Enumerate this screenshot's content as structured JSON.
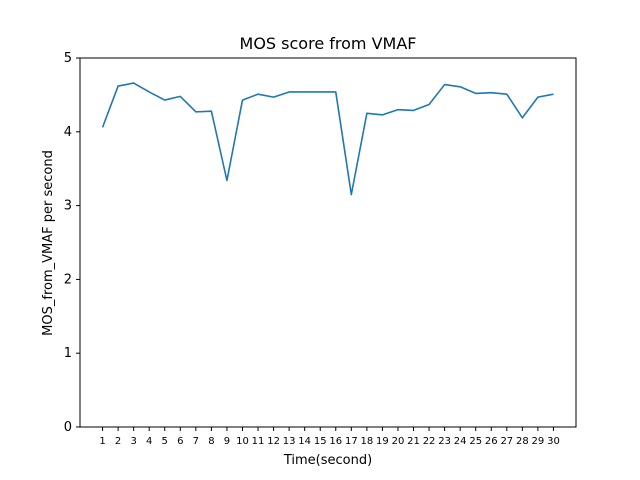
{
  "chart_data": {
    "type": "line",
    "title": "MOS score from VMAF",
    "xlabel": "Time(second)",
    "ylabel": "MOS_from_VMAF per second",
    "ylim": [
      0,
      5
    ],
    "yticks": [
      0,
      1,
      2,
      3,
      4,
      5
    ],
    "grid": false,
    "color": "#1f77b4",
    "x": [
      1,
      2,
      3,
      4,
      5,
      6,
      7,
      8,
      9,
      10,
      11,
      12,
      13,
      14,
      15,
      16,
      17,
      18,
      19,
      20,
      21,
      22,
      23,
      24,
      25,
      26,
      27,
      28,
      29,
      30
    ],
    "x_tick_labels": [
      "1",
      "2",
      "3",
      "4",
      "5",
      "6",
      "7",
      "8",
      "9",
      "10",
      "11",
      "12",
      "13",
      "14",
      "15",
      "16",
      "17",
      "18",
      "19",
      "20",
      "21",
      "22",
      "23",
      "24",
      "25",
      "26",
      "27",
      "28",
      "29",
      "30"
    ],
    "series": [
      {
        "values": [
          4.06,
          4.62,
          4.66,
          4.54,
          4.43,
          4.48,
          4.27,
          4.28,
          3.34,
          4.43,
          4.51,
          4.47,
          4.54,
          4.54,
          4.54,
          4.54,
          3.15,
          4.25,
          4.23,
          4.3,
          4.29,
          4.37,
          4.64,
          4.61,
          4.52,
          4.53,
          4.51,
          4.19,
          4.47,
          4.51
        ]
      }
    ]
  }
}
